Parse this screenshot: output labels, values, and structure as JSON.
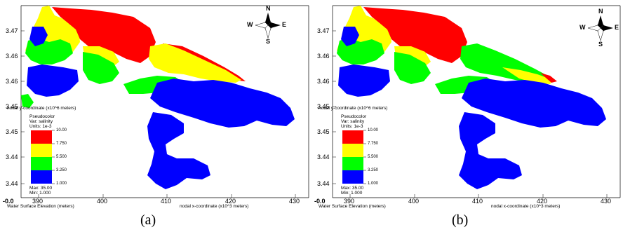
{
  "panels": [
    {
      "id": "a",
      "caption": "(a)",
      "y_axis_title": "nodal y-coordinate (x10^6 meters)",
      "x_axis_title": "nodal x-coordinate (x10^3 meters)",
      "variable_title": "Water Surface Elevation (meters)",
      "origin_label": "-0.0",
      "y_ticks": [
        "3.47",
        "3.46",
        "3.46",
        "3.45",
        "3.45",
        "3.44",
        "3.44"
      ],
      "x_ticks": [
        "390",
        "400",
        "410",
        "420",
        "430"
      ],
      "legend": {
        "title": "Pseudocolor",
        "var": "Var: salinity",
        "units": "Units: 1e-3",
        "levels": [
          "10.00",
          "7.750",
          "5.500",
          "3.250",
          "1.000"
        ],
        "colors": [
          "#ff0000",
          "#ffff00",
          "#00ff00",
          "#0000ff"
        ],
        "max": "Max: 35.00",
        "min": "Min: 1.000"
      },
      "compass": {
        "n": "N",
        "s": "S",
        "e": "E",
        "w": "W"
      }
    },
    {
      "id": "b",
      "caption": "(b)",
      "y_axis_title": "nodal y-coordinate (x10^6 meters)",
      "x_axis_title": "nodal x-coordinate (x10^3 meters)",
      "variable_title": "Water Surface Elevation (meters)",
      "origin_label": "-0.0",
      "y_ticks": [
        "3.47",
        "3.46",
        "3.46",
        "3.45",
        "3.45",
        "3.44",
        "3.44"
      ],
      "x_ticks": [
        "390",
        "400",
        "410",
        "420",
        "430"
      ],
      "legend": {
        "title": "Pseudocolor",
        "var": "Var: salinity",
        "units": "Units: 1e-3",
        "levels": [
          "10.00",
          "7.750",
          "5.500",
          "3.250",
          "1.000"
        ],
        "colors": [
          "#ff0000",
          "#ffff00",
          "#00ff00",
          "#0000ff"
        ],
        "max": "Max: 35.00",
        "min": "Min: 1.000"
      },
      "compass": {
        "n": "N",
        "s": "S",
        "e": "E",
        "w": "W"
      }
    }
  ],
  "colors": {
    "red": "#ff0000",
    "yellow": "#ffff00",
    "green": "#00ff00",
    "blue": "#0000ff"
  }
}
